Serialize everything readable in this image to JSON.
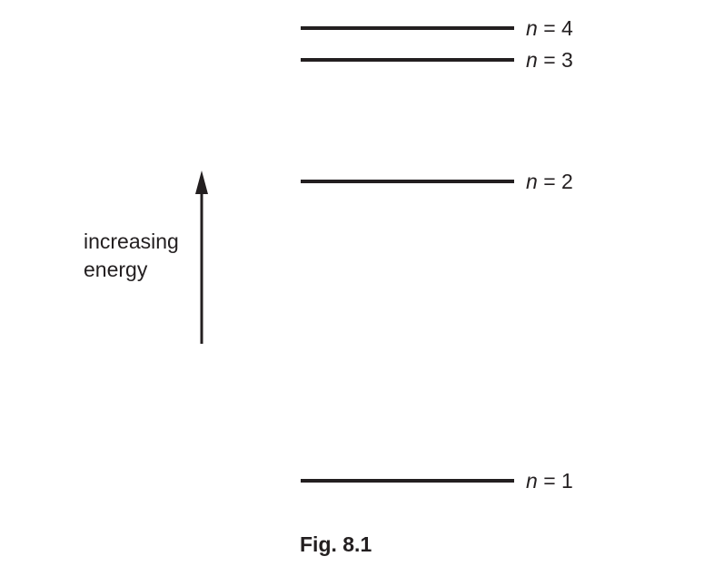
{
  "levels": [
    {
      "n": "4",
      "relation": "="
    },
    {
      "n": "3",
      "relation": "="
    },
    {
      "n": "2",
      "relation": "="
    },
    {
      "n": "1",
      "relation": "="
    }
  ],
  "variable": "n",
  "axis": {
    "label_line1": "increasing",
    "label_line2": "energy"
  },
  "caption": "Fig. 8.1",
  "colors": {
    "ink": "#231f20",
    "background": "#ffffff"
  }
}
